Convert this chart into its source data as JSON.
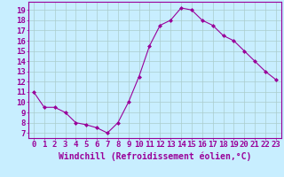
{
  "x": [
    0,
    1,
    2,
    3,
    4,
    5,
    6,
    7,
    8,
    9,
    10,
    11,
    12,
    13,
    14,
    15,
    16,
    17,
    18,
    19,
    20,
    21,
    22,
    23
  ],
  "y": [
    11,
    9.5,
    9.5,
    9,
    8,
    7.8,
    7.5,
    7,
    8,
    10,
    12.5,
    15.5,
    17.5,
    18,
    19.2,
    19,
    18,
    17.5,
    16.5,
    16,
    15,
    14,
    13,
    12.2
  ],
  "line_color": "#990099",
  "marker_color": "#990099",
  "bg_color": "#c8eeff",
  "grid_color": "#aacccc",
  "xlabel": "Windchill (Refroidissement éolien,°C)",
  "ylabel_ticks": [
    7,
    8,
    9,
    10,
    11,
    12,
    13,
    14,
    15,
    16,
    17,
    18,
    19
  ],
  "xlim": [
    -0.5,
    23.5
  ],
  "ylim": [
    6.5,
    19.8
  ],
  "xlabel_fontsize": 7,
  "tick_fontsize": 6.5,
  "tick_color": "#990099",
  "label_color": "#990099",
  "spine_color": "#990099"
}
